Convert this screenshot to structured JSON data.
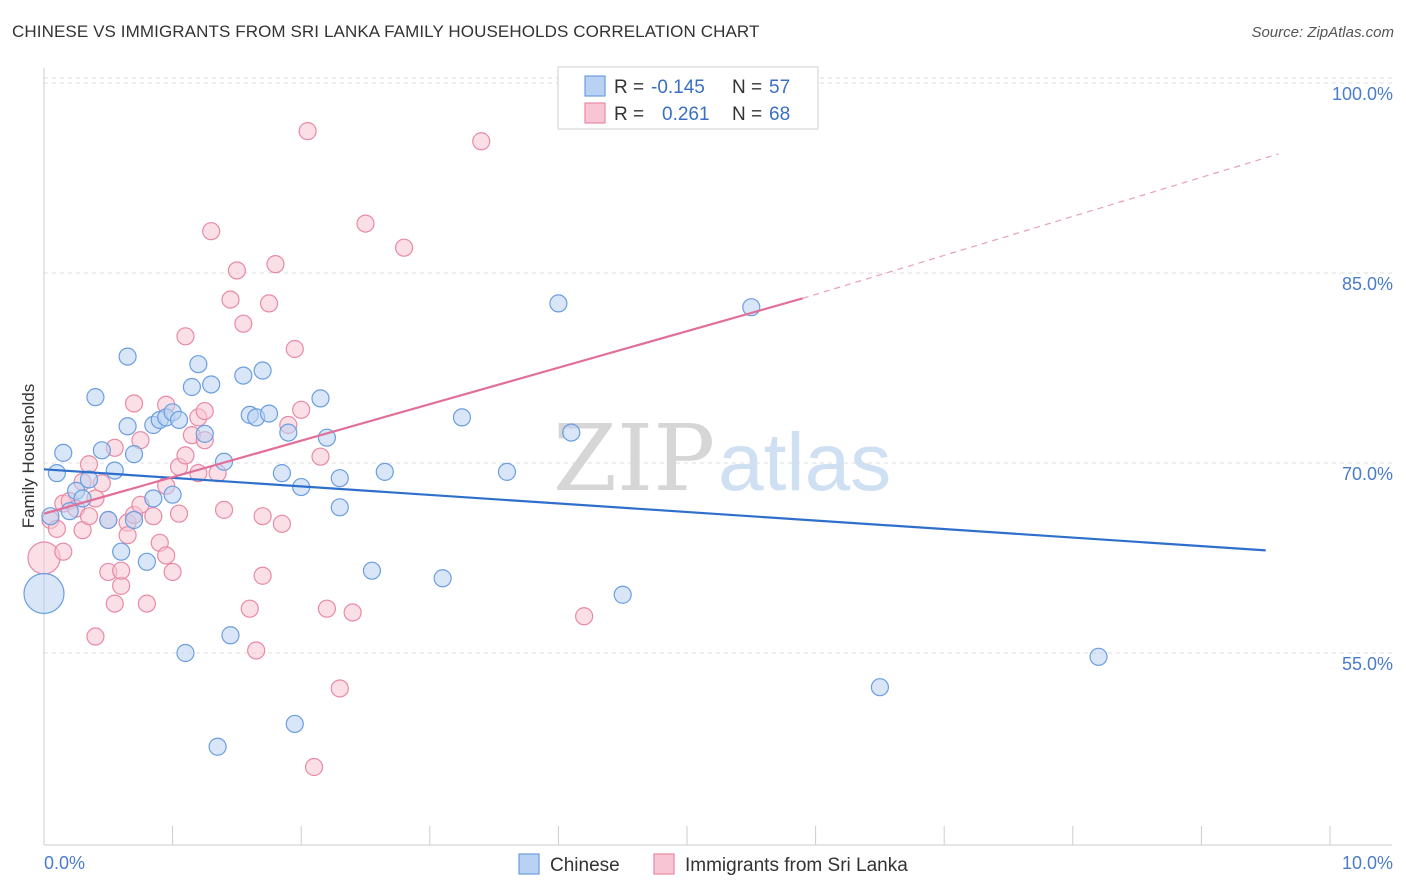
{
  "title": "CHINESE VS IMMIGRANTS FROM SRI LANKA FAMILY HOUSEHOLDS CORRELATION CHART",
  "source": "Source: ZipAtlas.com",
  "colors": {
    "blue": "#6b9ee0",
    "blue_fill": "#b9d1f3",
    "blue_line": "#2f6fcc",
    "pink": "#e88aa6",
    "pink_fill": "#f7c5d4",
    "pink_line": "#e0709a"
  },
  "legend": {
    "rows": [
      {
        "r_label": "R =",
        "r_value": "-0.145",
        "n_label": "N =",
        "n_value": "57"
      },
      {
        "r_label": "R =",
        "r_value": "0.261",
        "n_label": "N =",
        "n_value": "68"
      }
    ]
  },
  "bottom_legend": [
    "Chinese",
    "Immigrants from Sri Lanka"
  ],
  "watermark": {
    "zip": "ZIP",
    "atlas": "atlas"
  },
  "chart_data": {
    "type": "scatter",
    "title": "CHINESE VS IMMIGRANTS FROM SRI LANKA FAMILY HOUSEHOLDS CORRELATION CHART",
    "xlabel": "",
    "ylabel": "Family Households",
    "xlim": [
      0,
      10
    ],
    "ylim": [
      41,
      103
    ],
    "x_tick_labels": [
      "0.0%",
      "10.0%"
    ],
    "y_ticks": [
      55,
      70,
      85,
      100
    ],
    "y_tick_labels": [
      "55.0%",
      "70.0%",
      "85.0%",
      "100.0%"
    ],
    "legend_position": "top-center",
    "series": [
      {
        "name": "Chinese",
        "trend": {
          "x": [
            0,
            9.5
          ],
          "y": [
            69.5,
            63.1
          ]
        },
        "points": [
          {
            "x": 0.0,
            "y": 59.7,
            "s": 3
          },
          {
            "x": 0.1,
            "y": 69.2
          },
          {
            "x": 0.15,
            "y": 70.8
          },
          {
            "x": 0.2,
            "y": 66.2
          },
          {
            "x": 0.25,
            "y": 67.8
          },
          {
            "x": 0.3,
            "y": 67.2
          },
          {
            "x": 0.35,
            "y": 68.7
          },
          {
            "x": 0.4,
            "y": 75.2
          },
          {
            "x": 0.45,
            "y": 71.0
          },
          {
            "x": 0.5,
            "y": 65.5
          },
          {
            "x": 0.55,
            "y": 69.4
          },
          {
            "x": 0.6,
            "y": 63.0
          },
          {
            "x": 0.65,
            "y": 78.4
          },
          {
            "x": 0.65,
            "y": 72.9
          },
          {
            "x": 0.7,
            "y": 65.5
          },
          {
            "x": 0.7,
            "y": 70.7
          },
          {
            "x": 0.8,
            "y": 62.2
          },
          {
            "x": 0.85,
            "y": 67.2
          },
          {
            "x": 0.85,
            "y": 73.0
          },
          {
            "x": 0.9,
            "y": 73.4
          },
          {
            "x": 0.95,
            "y": 73.6
          },
          {
            "x": 1.0,
            "y": 74.0
          },
          {
            "x": 1.0,
            "y": 67.5
          },
          {
            "x": 1.05,
            "y": 73.4
          },
          {
            "x": 1.1,
            "y": 55.0
          },
          {
            "x": 1.15,
            "y": 76.0
          },
          {
            "x": 1.2,
            "y": 77.8
          },
          {
            "x": 1.25,
            "y": 72.3
          },
          {
            "x": 1.3,
            "y": 76.2
          },
          {
            "x": 1.35,
            "y": 47.6
          },
          {
            "x": 1.4,
            "y": 70.1
          },
          {
            "x": 1.45,
            "y": 56.4
          },
          {
            "x": 1.55,
            "y": 76.9
          },
          {
            "x": 1.6,
            "y": 73.8
          },
          {
            "x": 1.65,
            "y": 73.6
          },
          {
            "x": 1.7,
            "y": 77.3
          },
          {
            "x": 1.75,
            "y": 73.9
          },
          {
            "x": 1.85,
            "y": 69.2
          },
          {
            "x": 1.9,
            "y": 72.4
          },
          {
            "x": 1.95,
            "y": 49.4
          },
          {
            "x": 2.0,
            "y": 68.1
          },
          {
            "x": 2.15,
            "y": 75.1
          },
          {
            "x": 2.2,
            "y": 72.0
          },
          {
            "x": 2.3,
            "y": 66.5
          },
          {
            "x": 2.3,
            "y": 68.8
          },
          {
            "x": 2.55,
            "y": 61.5
          },
          {
            "x": 2.65,
            "y": 69.3
          },
          {
            "x": 3.1,
            "y": 60.9
          },
          {
            "x": 3.25,
            "y": 73.6
          },
          {
            "x": 3.6,
            "y": 69.3
          },
          {
            "x": 4.0,
            "y": 82.6
          },
          {
            "x": 4.1,
            "y": 72.4
          },
          {
            "x": 4.5,
            "y": 59.6
          },
          {
            "x": 5.5,
            "y": 82.3
          },
          {
            "x": 6.5,
            "y": 52.3
          },
          {
            "x": 8.2,
            "y": 54.7
          },
          {
            "x": 0.05,
            "y": 65.8
          }
        ]
      },
      {
        "name": "Immigrants from Sri Lanka",
        "trend": {
          "x": [
            0,
            5.9
          ],
          "y": [
            66.0,
            83.0
          ]
        },
        "trend_dashed": {
          "x": [
            5.9,
            9.6
          ],
          "y": [
            83.0,
            94.4
          ]
        },
        "points": [
          {
            "x": 0.0,
            "y": 62.5,
            "s": 2
          },
          {
            "x": 0.05,
            "y": 65.5
          },
          {
            "x": 0.1,
            "y": 64.8
          },
          {
            "x": 0.15,
            "y": 66.8
          },
          {
            "x": 0.2,
            "y": 67.0
          },
          {
            "x": 0.25,
            "y": 66.4
          },
          {
            "x": 0.3,
            "y": 68.5
          },
          {
            "x": 0.3,
            "y": 64.7
          },
          {
            "x": 0.35,
            "y": 69.9
          },
          {
            "x": 0.4,
            "y": 67.2
          },
          {
            "x": 0.4,
            "y": 56.3
          },
          {
            "x": 0.45,
            "y": 68.4
          },
          {
            "x": 0.5,
            "y": 65.5
          },
          {
            "x": 0.5,
            "y": 61.4
          },
          {
            "x": 0.55,
            "y": 71.2
          },
          {
            "x": 0.55,
            "y": 58.9
          },
          {
            "x": 0.6,
            "y": 60.3
          },
          {
            "x": 0.6,
            "y": 61.5
          },
          {
            "x": 0.65,
            "y": 65.3
          },
          {
            "x": 0.7,
            "y": 65.9
          },
          {
            "x": 0.7,
            "y": 74.7
          },
          {
            "x": 0.75,
            "y": 71.8
          },
          {
            "x": 0.75,
            "y": 66.7
          },
          {
            "x": 0.8,
            "y": 58.9
          },
          {
            "x": 0.85,
            "y": 65.8
          },
          {
            "x": 0.9,
            "y": 63.7
          },
          {
            "x": 0.95,
            "y": 74.6
          },
          {
            "x": 0.95,
            "y": 68.2
          },
          {
            "x": 1.0,
            "y": 61.4
          },
          {
            "x": 1.05,
            "y": 69.7
          },
          {
            "x": 1.1,
            "y": 80.0
          },
          {
            "x": 1.1,
            "y": 70.6
          },
          {
            "x": 1.15,
            "y": 72.2
          },
          {
            "x": 1.2,
            "y": 73.6
          },
          {
            "x": 1.2,
            "y": 69.2
          },
          {
            "x": 1.25,
            "y": 71.8
          },
          {
            "x": 1.3,
            "y": 88.3
          },
          {
            "x": 1.35,
            "y": 69.2
          },
          {
            "x": 1.4,
            "y": 66.3
          },
          {
            "x": 1.45,
            "y": 82.9
          },
          {
            "x": 1.5,
            "y": 85.2
          },
          {
            "x": 1.55,
            "y": 81.0
          },
          {
            "x": 1.6,
            "y": 58.5
          },
          {
            "x": 1.65,
            "y": 55.2
          },
          {
            "x": 1.7,
            "y": 61.1
          },
          {
            "x": 1.7,
            "y": 65.8
          },
          {
            "x": 1.75,
            "y": 82.6
          },
          {
            "x": 1.8,
            "y": 85.7
          },
          {
            "x": 1.85,
            "y": 65.2
          },
          {
            "x": 1.9,
            "y": 73.0
          },
          {
            "x": 1.95,
            "y": 79.0
          },
          {
            "x": 2.0,
            "y": 74.2
          },
          {
            "x": 2.05,
            "y": 96.2
          },
          {
            "x": 2.1,
            "y": 46.0
          },
          {
            "x": 2.15,
            "y": 70.5
          },
          {
            "x": 2.2,
            "y": 58.5
          },
          {
            "x": 2.3,
            "y": 52.2
          },
          {
            "x": 2.4,
            "y": 58.2
          },
          {
            "x": 2.5,
            "y": 88.9
          },
          {
            "x": 2.8,
            "y": 87.0
          },
          {
            "x": 3.4,
            "y": 95.4
          },
          {
            "x": 4.2,
            "y": 57.9
          },
          {
            "x": 0.95,
            "y": 62.7
          },
          {
            "x": 1.25,
            "y": 74.1
          },
          {
            "x": 0.65,
            "y": 64.3
          },
          {
            "x": 0.35,
            "y": 65.8
          },
          {
            "x": 1.05,
            "y": 66.0
          },
          {
            "x": 0.15,
            "y": 63.0
          }
        ]
      }
    ]
  }
}
